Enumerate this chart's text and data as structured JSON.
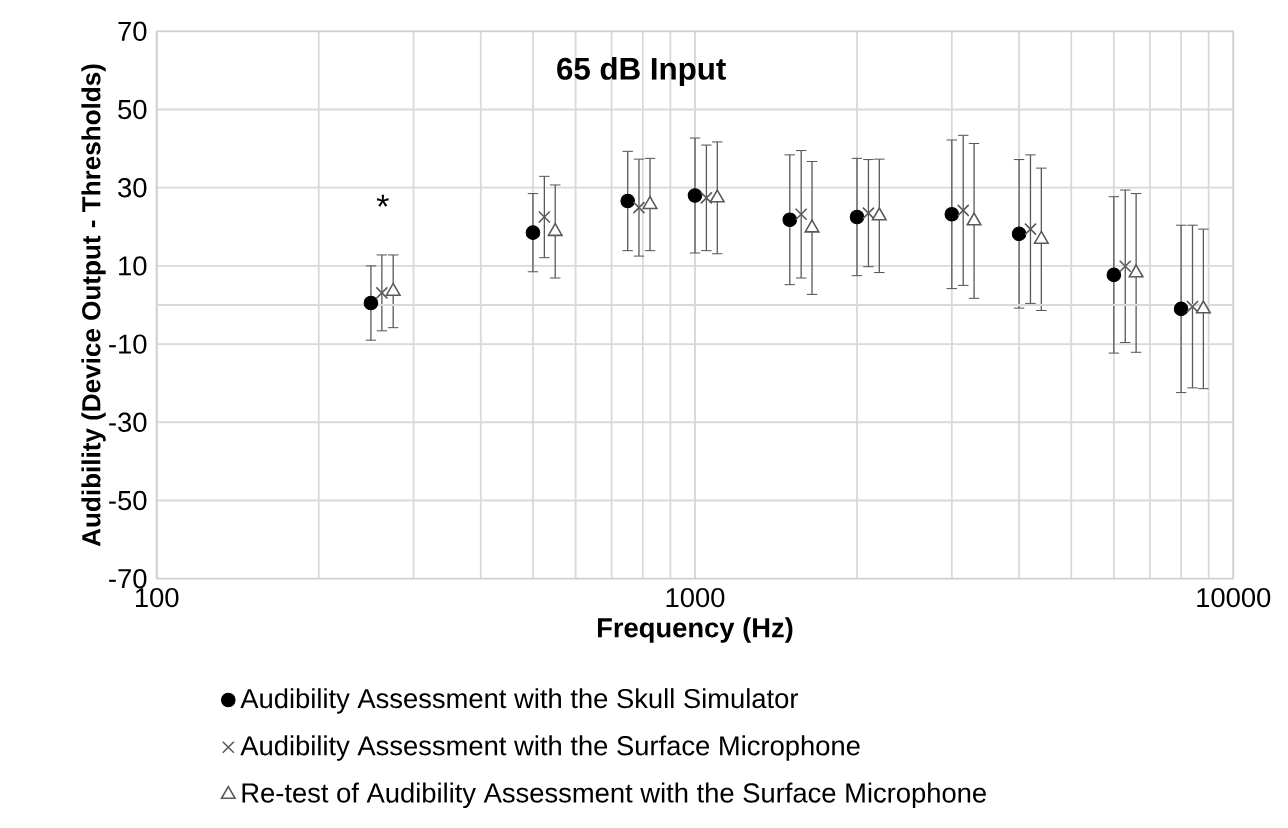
{
  "chart_data": {
    "type": "scatter",
    "title": "65 dB Input",
    "xlabel": "Frequency (Hz)",
    "ylabel": "Audibility (Device Output - Thresholds)",
    "log": "x",
    "xlim": [
      100,
      10000
    ],
    "xticks": [
      100,
      1000,
      10000
    ],
    "ylim": [
      -70,
      70
    ],
    "yticks": [
      -70,
      -50,
      -30,
      -10,
      10,
      30,
      50,
      70
    ],
    "grid": true,
    "legend": "bottom",
    "ref_lines": [
      {
        "axis": "y",
        "value": 0,
        "color": "#d9d9d9"
      }
    ],
    "annotations": [
      "*"
    ],
    "series": [
      {
        "name": "Audibility Assessment with the Skull Simulator",
        "color": "#000000",
        "marker": "circle",
        "x": [
          250,
          500,
          750,
          1000,
          1500,
          2000,
          3000,
          4000,
          6000,
          8000
        ],
        "values": [
          0.5,
          18.5,
          26.6,
          28,
          21.8,
          22.5,
          23.2,
          18.2,
          7.7,
          -1
        ],
        "errors": [
          9.5,
          10,
          12.7,
          14.7,
          16.6,
          15,
          19,
          19,
          20,
          21.4
        ]
      },
      {
        "name": "Audibility Assessment with the Surface Microphone",
        "color": "#595959",
        "marker": "cross",
        "x": [
          262,
          525,
          787,
          1050,
          1575,
          2100,
          3150,
          4200,
          6300,
          8400
        ],
        "values": [
          3.1,
          22.5,
          24.9,
          27.4,
          23.2,
          23.5,
          24.2,
          19.4,
          9.9,
          -0.4
        ],
        "errors": [
          9.7,
          10.4,
          12.4,
          13.5,
          16.3,
          13.7,
          19.2,
          19,
          19.5,
          20.8
        ]
      },
      {
        "name": "Re-test of Audibility Assessment with the Surface Microphone",
        "color": "#595959",
        "marker": "triangle",
        "x": [
          275,
          550,
          825,
          1100,
          1650,
          2200,
          3300,
          4400,
          6600,
          8800
        ],
        "values": [
          3.5,
          18.8,
          25.7,
          27.4,
          19.7,
          22.8,
          21.5,
          16.8,
          8.2,
          -1
        ],
        "errors": [
          9.3,
          11.9,
          11.8,
          14.3,
          17,
          14.5,
          19.8,
          18.2,
          20.3,
          20.4
        ]
      }
    ]
  }
}
